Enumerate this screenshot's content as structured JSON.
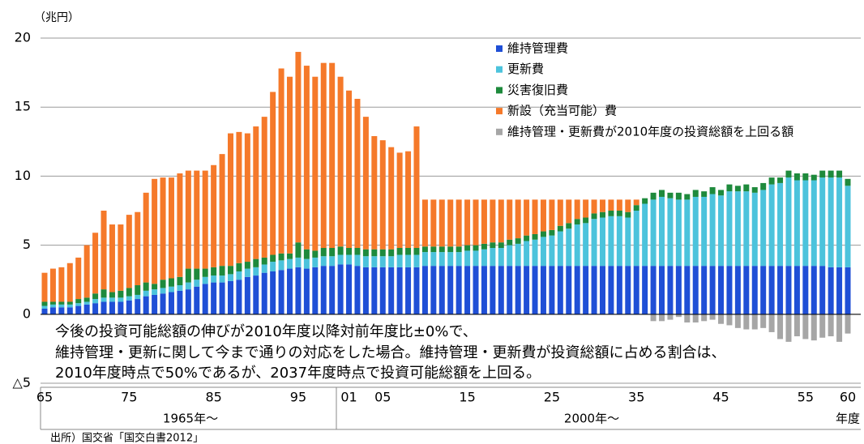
{
  "chart_data": {
    "type": "stacked_bar",
    "unit_label": "（兆円）",
    "x_label": "年度",
    "periods": [
      "1965年～",
      "2000年～"
    ],
    "annotation": [
      "今後の投資可能総額の伸びが2010年度以降対前年度比±0%で、",
      "維持管理・更新に関して今まで通りの対応をした場合。維持管理・更新費が投資総額に占める割合は、",
      "2010年度時点で50%であるが、2037年度時点で投資可能総額を上回る。"
    ],
    "source": "出所）国交省「国交白書2012」",
    "categories": [
      "65",
      null,
      null,
      null,
      null,
      null,
      null,
      null,
      null,
      null,
      "75",
      null,
      null,
      null,
      null,
      null,
      null,
      null,
      null,
      null,
      "85",
      null,
      null,
      null,
      null,
      null,
      null,
      null,
      null,
      null,
      "95",
      null,
      null,
      null,
      null,
      null,
      "01",
      null,
      null,
      null,
      "05",
      null,
      null,
      null,
      null,
      null,
      null,
      null,
      null,
      null,
      "15",
      null,
      null,
      null,
      null,
      null,
      null,
      null,
      null,
      null,
      "25",
      null,
      null,
      null,
      null,
      null,
      null,
      null,
      null,
      null,
      "35",
      null,
      null,
      null,
      null,
      null,
      null,
      null,
      null,
      null,
      "45",
      null,
      null,
      null,
      null,
      null,
      null,
      null,
      null,
      null,
      "55",
      null,
      null,
      null,
      null,
      "60"
    ],
    "ylim": [
      -5,
      20
    ],
    "yticks": [
      20,
      15,
      10,
      5,
      0,
      {
        "value": -5,
        "label": "△5"
      }
    ],
    "grid": true,
    "series": [
      {
        "name": "維持管理費",
        "color": "#1f4fd6",
        "values": [
          0.4,
          0.5,
          0.5,
          0.5,
          0.6,
          0.7,
          0.8,
          0.9,
          0.9,
          0.9,
          1.0,
          1.1,
          1.3,
          1.4,
          1.5,
          1.6,
          1.7,
          1.8,
          2.0,
          2.2,
          2.3,
          2.3,
          2.4,
          2.5,
          2.7,
          2.8,
          3.0,
          3.1,
          3.2,
          3.3,
          3.4,
          3.3,
          3.4,
          3.5,
          3.5,
          3.6,
          3.6,
          3.5,
          3.4,
          3.4,
          3.4,
          3.4,
          3.4,
          3.4,
          3.4,
          3.5,
          3.5,
          3.5,
          3.5,
          3.5,
          3.5,
          3.5,
          3.5,
          3.5,
          3.5,
          3.5,
          3.5,
          3.5,
          3.5,
          3.5,
          3.5,
          3.5,
          3.5,
          3.5,
          3.5,
          3.5,
          3.5,
          3.5,
          3.5,
          3.5,
          3.5,
          3.5,
          3.5,
          3.5,
          3.5,
          3.5,
          3.5,
          3.5,
          3.5,
          3.5,
          3.5,
          3.5,
          3.5,
          3.5,
          3.5,
          3.5,
          3.5,
          3.5,
          3.5,
          3.5,
          3.5,
          3.5,
          3.5,
          3.4,
          3.4,
          3.4
        ]
      },
      {
        "name": "更新費",
        "color": "#4cc3dc",
        "values": [
          0.2,
          0.2,
          0.2,
          0.2,
          0.2,
          0.2,
          0.3,
          0.3,
          0.3,
          0.3,
          0.3,
          0.3,
          0.4,
          0.4,
          0.4,
          0.4,
          0.4,
          0.5,
          0.5,
          0.5,
          0.5,
          0.5,
          0.5,
          0.6,
          0.6,
          0.6,
          0.6,
          0.7,
          0.7,
          0.7,
          0.7,
          0.7,
          0.7,
          0.7,
          0.7,
          0.7,
          0.7,
          0.8,
          0.8,
          0.8,
          0.8,
          0.8,
          0.9,
          0.9,
          0.9,
          1.0,
          1.0,
          1.0,
          1.0,
          1.0,
          1.1,
          1.1,
          1.2,
          1.3,
          1.3,
          1.5,
          1.6,
          1.8,
          1.9,
          2.1,
          2.2,
          2.5,
          2.7,
          3.0,
          3.1,
          3.4,
          3.5,
          3.6,
          3.6,
          3.5,
          4.0,
          4.5,
          4.8,
          5.0,
          4.9,
          4.8,
          4.8,
          5.0,
          5.0,
          5.2,
          5.1,
          5.4,
          5.4,
          5.4,
          5.3,
          5.5,
          5.9,
          6.0,
          6.4,
          6.2,
          6.2,
          6.2,
          6.4,
          6.5,
          6.5,
          5.9
        ]
      },
      {
        "name": "災害復旧費",
        "color": "#1e8a3c",
        "values": [
          0.3,
          0.2,
          0.2,
          0.2,
          0.3,
          0.3,
          0.4,
          0.6,
          0.4,
          0.5,
          0.6,
          0.7,
          0.6,
          0.4,
          0.6,
          0.6,
          0.6,
          1.0,
          0.8,
          0.6,
          0.6,
          0.7,
          0.6,
          0.6,
          0.5,
          0.6,
          0.5,
          0.5,
          0.5,
          0.4,
          1.1,
          0.7,
          0.5,
          0.6,
          0.6,
          0.6,
          0.5,
          0.5,
          0.5,
          0.5,
          0.5,
          0.5,
          0.5,
          0.5,
          0.5,
          0.4,
          0.4,
          0.4,
          0.4,
          0.4,
          0.4,
          0.4,
          0.4,
          0.4,
          0.4,
          0.4,
          0.4,
          0.4,
          0.4,
          0.4,
          0.4,
          0.4,
          0.4,
          0.4,
          0.4,
          0.4,
          0.4,
          0.4,
          0.4,
          0.4,
          0.4,
          0.4,
          0.5,
          0.5,
          0.4,
          0.5,
          0.4,
          0.5,
          0.4,
          0.5,
          0.4,
          0.5,
          0.4,
          0.5,
          0.4,
          0.5,
          0.5,
          0.4,
          0.5,
          0.5,
          0.5,
          0.4,
          0.5,
          0.5,
          0.5,
          0.5
        ]
      },
      {
        "name": "新設（充当可能）費",
        "color": "#f5792a",
        "values": [
          2.1,
          2.4,
          2.5,
          2.8,
          3.0,
          3.8,
          4.4,
          5.7,
          4.9,
          4.8,
          5.3,
          5.3,
          6.5,
          7.6,
          7.4,
          7.3,
          7.5,
          7.1,
          7.1,
          7.1,
          7.4,
          8.1,
          9.6,
          9.5,
          9.3,
          9.6,
          10.2,
          11.8,
          13.4,
          12.8,
          13.8,
          13.3,
          12.6,
          13.4,
          13.4,
          12.3,
          11.4,
          10.8,
          9.6,
          8.2,
          7.9,
          7.4,
          6.9,
          7.0,
          8.8,
          3.4,
          3.4,
          3.4,
          3.4,
          3.4,
          3.3,
          3.3,
          3.2,
          3.1,
          3.1,
          2.9,
          2.8,
          2.6,
          2.5,
          2.3,
          2.2,
          1.9,
          1.7,
          1.4,
          1.3,
          1.0,
          0.9,
          0.8,
          0.8,
          0.9,
          0.4,
          null,
          null,
          null,
          null,
          null,
          null,
          null,
          null,
          null,
          null,
          null,
          null,
          null,
          null,
          null,
          null,
          null,
          null,
          null,
          null,
          null,
          null,
          null,
          null,
          null
        ]
      },
      {
        "name": "維持管理・更新費が2010年度の投資総額を上回る額",
        "color": "#a6a6a6",
        "values": [
          null,
          null,
          null,
          null,
          null,
          null,
          null,
          null,
          null,
          null,
          null,
          null,
          null,
          null,
          null,
          null,
          null,
          null,
          null,
          null,
          null,
          null,
          null,
          null,
          null,
          null,
          null,
          null,
          null,
          null,
          null,
          null,
          null,
          null,
          null,
          null,
          null,
          null,
          null,
          null,
          null,
          null,
          null,
          null,
          null,
          null,
          null,
          null,
          null,
          null,
          null,
          null,
          null,
          null,
          null,
          null,
          null,
          null,
          null,
          null,
          null,
          null,
          null,
          null,
          null,
          null,
          null,
          null,
          null,
          null,
          null,
          null,
          -0.5,
          -0.5,
          -0.4,
          -0.2,
          -0.6,
          -0.6,
          -0.5,
          -0.4,
          -0.7,
          -0.8,
          -1.0,
          -1.1,
          -1.1,
          -1.0,
          -1.3,
          -1.8,
          -2.0,
          -1.6,
          -1.8,
          -1.9,
          -1.7,
          -1.6,
          -2.0,
          -1.4
        ]
      }
    ]
  }
}
